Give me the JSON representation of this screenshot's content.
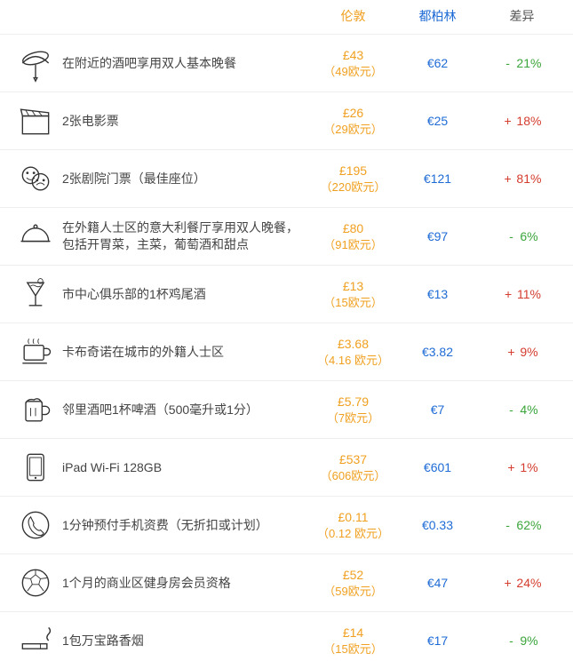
{
  "headers": {
    "col1": "伦敦",
    "col2": "都柏林",
    "col3": "差异"
  },
  "rows": [
    {
      "icon": "sausage",
      "label": "在附近的酒吧享用双人基本晚餐",
      "price1": "£43",
      "price1sub": "（49欧元）",
      "price2": "€62",
      "diffSign": "-",
      "diffVal": "21%",
      "diffClass": "neg"
    },
    {
      "icon": "clapper",
      "label": "2张电影票",
      "price1": "£26",
      "price1sub": "（29欧元）",
      "price2": "€25",
      "diffSign": "+",
      "diffVal": "18%",
      "diffClass": "pos"
    },
    {
      "icon": "masks",
      "label": "2张剧院门票（最佳座位）",
      "price1": "£195",
      "price1sub": "（220欧元）",
      "price2": "€121",
      "diffSign": "+",
      "diffVal": "81%",
      "diffClass": "pos"
    },
    {
      "icon": "cloche",
      "label": "在外籍人士区的意大利餐厅享用双人晚餐，包括开胃菜，主菜，葡萄酒和甜点",
      "price1": "£80",
      "price1sub": "（91欧元）",
      "price2": "€97",
      "diffSign": "-",
      "diffVal": "6%",
      "diffClass": "neg"
    },
    {
      "icon": "cocktail",
      "label": "市中心俱乐部的1杯鸡尾酒",
      "price1": "£13",
      "price1sub": "（15欧元）",
      "price2": "€13",
      "diffSign": "+",
      "diffVal": "11%",
      "diffClass": "pos"
    },
    {
      "icon": "coffee",
      "label": "卡布奇诺在城市的外籍人士区",
      "price1": "£3.68",
      "price1sub": "（4.16 欧元）",
      "price2": "€3.82",
      "diffSign": "+",
      "diffVal": "9%",
      "diffClass": "pos"
    },
    {
      "icon": "beer",
      "label": "邻里酒吧1杯啤酒（500毫升或1分）",
      "price1": "£5.79",
      "price1sub": "（7欧元）",
      "price2": "€7",
      "diffSign": "-",
      "diffVal": "4%",
      "diffClass": "neg"
    },
    {
      "icon": "tablet",
      "label": "iPad Wi-Fi 128GB",
      "price1": "£537",
      "price1sub": "（606欧元）",
      "price2": "€601",
      "diffSign": "+",
      "diffVal": "1%",
      "diffClass": "pos"
    },
    {
      "icon": "phone",
      "label": "1分钟预付手机资费（无折扣或计划）",
      "price1": "£0.11",
      "price1sub": "（0.12 欧元）",
      "price2": "€0.33",
      "diffSign": "-",
      "diffVal": "62%",
      "diffClass": "neg"
    },
    {
      "icon": "soccer",
      "label": "1个月的商业区健身房会员资格",
      "price1": "£52",
      "price1sub": "（59欧元）",
      "price2": "€47",
      "diffSign": "+",
      "diffVal": "24%",
      "diffClass": "pos"
    },
    {
      "icon": "cigarette",
      "label": "1包万宝路香烟",
      "price1": "£14",
      "price1sub": "（15欧元）",
      "price2": "€17",
      "diffSign": "-",
      "diffVal": "9%",
      "diffClass": "neg"
    }
  ]
}
